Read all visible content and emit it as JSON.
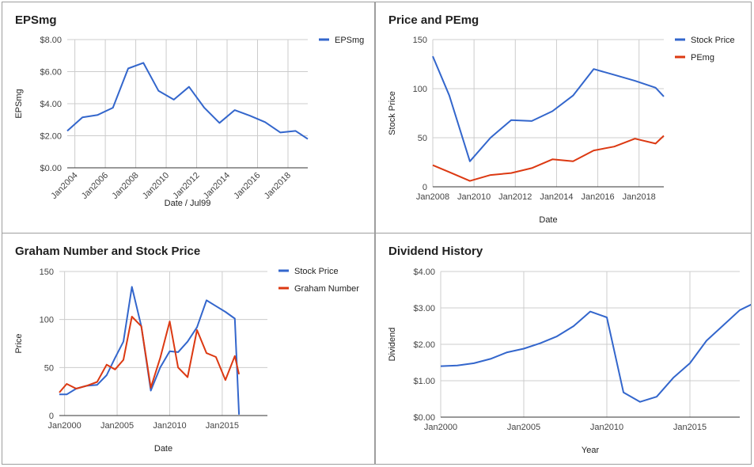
{
  "chart_data": [
    {
      "id": "eps",
      "type": "line",
      "title": "EPSmg",
      "xlabel": "Date / Jul99",
      "ylabel": "EPSmg",
      "ylim": [
        0,
        8
      ],
      "xlim": [
        2003.5,
        2019.3
      ],
      "y_ticks": [
        0,
        2,
        4,
        6,
        8
      ],
      "y_tick_labels": [
        "$0.00",
        "$2.00",
        "$4.00",
        "$6.00",
        "$8.00"
      ],
      "x_ticks": [
        2004,
        2006,
        2008,
        2010,
        2012,
        2014,
        2016,
        2018
      ],
      "x_tick_labels": [
        "Jan2004",
        "Jan2006",
        "Jan2008",
        "Jan2010",
        "Jan2012",
        "Jan2014",
        "Jan2016",
        "Jan2018"
      ],
      "x_tick_rotate": true,
      "legend": "right",
      "series": [
        {
          "name": "EPSmg",
          "color": "#3366cc",
          "points": [
            [
              2003.5,
              2.3
            ],
            [
              2004.5,
              3.15
            ],
            [
              2005.5,
              3.3
            ],
            [
              2006.5,
              3.75
            ],
            [
              2007.5,
              6.2
            ],
            [
              2008.5,
              6.55
            ],
            [
              2009.5,
              4.8
            ],
            [
              2010.5,
              4.25
            ],
            [
              2011.5,
              5.05
            ],
            [
              2012.5,
              3.75
            ],
            [
              2013.5,
              2.8
            ],
            [
              2014.5,
              3.6
            ],
            [
              2015.5,
              3.25
            ],
            [
              2016.5,
              2.85
            ],
            [
              2017.5,
              2.2
            ],
            [
              2018.5,
              2.3
            ],
            [
              2019.3,
              1.8
            ]
          ]
        }
      ]
    },
    {
      "id": "pe",
      "type": "line",
      "title": "Price and PEmg",
      "xlabel": "Date",
      "ylabel": "Stock Price",
      "ylim": [
        0,
        150
      ],
      "xlim": [
        2008,
        2019.2
      ],
      "y_ticks": [
        0,
        50,
        100,
        150
      ],
      "y_tick_labels": [
        "0",
        "50",
        "100",
        "150"
      ],
      "x_ticks": [
        2008,
        2010,
        2012,
        2014,
        2016,
        2018
      ],
      "x_tick_labels": [
        "Jan2008",
        "Jan2010",
        "Jan2012",
        "Jan2014",
        "Jan2016",
        "Jan2018"
      ],
      "x_tick_rotate": false,
      "legend": "right",
      "series": [
        {
          "name": "Stock Price",
          "color": "#3366cc",
          "points": [
            [
              2008,
              133
            ],
            [
              2008.8,
              93
            ],
            [
              2009.8,
              26
            ],
            [
              2010.8,
              50
            ],
            [
              2011.8,
              68
            ],
            [
              2012.8,
              67
            ],
            [
              2013.8,
              77
            ],
            [
              2014.8,
              93
            ],
            [
              2015.8,
              120
            ],
            [
              2016.8,
              114
            ],
            [
              2017.8,
              108
            ],
            [
              2018.8,
              101
            ],
            [
              2019.2,
              92
            ]
          ]
        },
        {
          "name": "PEmg",
          "color": "#dc3912",
          "points": [
            [
              2008,
              22
            ],
            [
              2008.8,
              15
            ],
            [
              2009.8,
              6
            ],
            [
              2010.8,
              12
            ],
            [
              2011.8,
              14
            ],
            [
              2012.8,
              19
            ],
            [
              2013.8,
              28
            ],
            [
              2014.8,
              26
            ],
            [
              2015.8,
              37
            ],
            [
              2016.8,
              41
            ],
            [
              2017.8,
              49
            ],
            [
              2018.8,
              44
            ],
            [
              2019.2,
              52
            ]
          ]
        }
      ]
    },
    {
      "id": "graham",
      "type": "line",
      "title": "Graham Number and Stock Price",
      "xlabel": "Date",
      "ylabel": "Price",
      "ylim": [
        0,
        150
      ],
      "xlim": [
        1999.5,
        2019.3
      ],
      "y_ticks": [
        0,
        50,
        100,
        150
      ],
      "y_tick_labels": [
        "0",
        "50",
        "100",
        "150"
      ],
      "x_ticks": [
        2000,
        2005,
        2010,
        2015
      ],
      "x_tick_labels": [
        "Jan2000",
        "Jan2005",
        "Jan2010",
        "Jan2015"
      ],
      "x_tick_rotate": false,
      "legend": "right",
      "series": [
        {
          "name": "Stock Price",
          "color": "#3366cc",
          "points": [
            [
              1999.5,
              22
            ],
            [
              2000.2,
              22
            ],
            [
              2001.1,
              28
            ],
            [
              2002.1,
              31
            ],
            [
              2003.1,
              32
            ],
            [
              2004,
              42
            ],
            [
              2004.8,
              60
            ],
            [
              2005.6,
              77
            ],
            [
              2006.4,
              134
            ],
            [
              2007.3,
              93
            ],
            [
              2008.2,
              26
            ],
            [
              2009.1,
              50
            ],
            [
              2010,
              67
            ],
            [
              2010.8,
              66
            ],
            [
              2011.7,
              77
            ],
            [
              2012.6,
              92
            ],
            [
              2013.5,
              120
            ],
            [
              2014.4,
              114
            ],
            [
              2015.3,
              108
            ],
            [
              2016.2,
              101
            ],
            [
              2016.6,
              1
            ]
          ]
        },
        {
          "name": "Graham Number",
          "color": "#dc3912",
          "points": [
            [
              1999.5,
              24
            ],
            [
              2000.2,
              33
            ],
            [
              2001.1,
              28
            ],
            [
              2002.1,
              31
            ],
            [
              2003.1,
              35
            ],
            [
              2004,
              53
            ],
            [
              2004.8,
              48
            ],
            [
              2005.6,
              58
            ],
            [
              2006.4,
              103
            ],
            [
              2007.3,
              93
            ],
            [
              2008.2,
              29
            ],
            [
              2009.1,
              60
            ],
            [
              2010,
              98
            ],
            [
              2010.8,
              50
            ],
            [
              2011.7,
              40
            ],
            [
              2012.6,
              89
            ],
            [
              2013.5,
              65
            ],
            [
              2014.4,
              61
            ],
            [
              2015.3,
              37
            ],
            [
              2016.2,
              62
            ],
            [
              2016.6,
              43
            ]
          ]
        }
      ]
    },
    {
      "id": "dividend",
      "type": "line",
      "title": "Dividend History",
      "xlabel": "Year",
      "ylabel": "Dividend",
      "ylim": [
        0,
        4
      ],
      "xlim": [
        2000,
        2018
      ],
      "y_ticks": [
        0,
        1,
        2,
        3,
        4
      ],
      "y_tick_labels": [
        "$0.00",
        "$1.00",
        "$2.00",
        "$3.00",
        "$4.00"
      ],
      "x_ticks": [
        2000,
        2005,
        2010,
        2015
      ],
      "x_tick_labels": [
        "Jan2000",
        "Jan2005",
        "Jan2010",
        "Jan2015"
      ],
      "x_tick_rotate": false,
      "legend": "none",
      "series": [
        {
          "name": "",
          "color": "#3366cc",
          "points": [
            [
              2000,
              1.4
            ],
            [
              2001,
              1.42
            ],
            [
              2002,
              1.48
            ],
            [
              2003,
              1.6
            ],
            [
              2004,
              1.78
            ],
            [
              2005,
              1.88
            ],
            [
              2006,
              2.03
            ],
            [
              2007,
              2.22
            ],
            [
              2008,
              2.5
            ],
            [
              2009,
              2.9
            ],
            [
              2010,
              2.74
            ],
            [
              2011,
              0.68
            ],
            [
              2012,
              0.42
            ],
            [
              2013,
              0.56
            ],
            [
              2014,
              1.08
            ],
            [
              2015,
              1.48
            ],
            [
              2016,
              2.1
            ],
            [
              2017,
              2.52
            ],
            [
              2018,
              2.94
            ],
            [
              2018.9,
              3.14
            ]
          ]
        }
      ]
    }
  ]
}
